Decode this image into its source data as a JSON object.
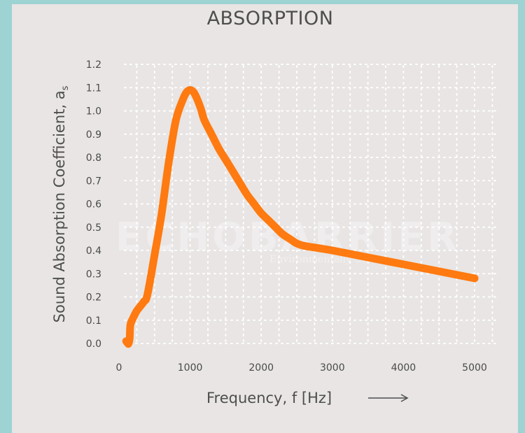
{
  "chart_data": {
    "type": "line",
    "title": "ABSORPTION",
    "xlabel": "Frequency, f [Hz]",
    "ylabel": "Sound Absorption Coefficient, a",
    "ylabel_subscript": "s",
    "xlim": [
      0,
      5000
    ],
    "ylim": [
      0,
      1.2
    ],
    "x_ticks": [
      "0",
      "1000",
      "2000",
      "3000",
      "4000",
      "5000"
    ],
    "y_ticks": [
      "0.0",
      "0.1",
      "0.2",
      "0.3",
      "0.4",
      "0.5",
      "0.6",
      "0.7",
      "0.8",
      "0.9",
      "1.0",
      "1.1",
      "1.2"
    ],
    "grid": true,
    "line_color": "#ff7a10",
    "series": [
      {
        "x": [
          100,
          125,
          135,
          150,
          160,
          200,
          250,
          300,
          350,
          400,
          500,
          600,
          700,
          800,
          900,
          950,
          1000,
          1050,
          1100,
          1150,
          1200,
          1300,
          1400,
          1500,
          1600,
          1700,
          1800,
          1900,
          2000,
          2100,
          2200,
          2300,
          2400,
          2500,
          2600,
          2800,
          3000,
          3500,
          4000,
          4500,
          5000
        ],
        "y": [
          0.01,
          0.0,
          0.0,
          0.02,
          0.08,
          0.11,
          0.14,
          0.16,
          0.18,
          0.21,
          0.38,
          0.56,
          0.78,
          0.96,
          1.05,
          1.08,
          1.09,
          1.08,
          1.05,
          1.01,
          0.96,
          0.9,
          0.84,
          0.79,
          0.74,
          0.69,
          0.64,
          0.6,
          0.56,
          0.53,
          0.5,
          0.47,
          0.45,
          0.43,
          0.42,
          0.41,
          0.4,
          0.37,
          0.34,
          0.31,
          0.28
        ]
      }
    ]
  },
  "watermark": {
    "main": "ECHOBARRIER",
    "sub": "Environmentally Sound"
  }
}
